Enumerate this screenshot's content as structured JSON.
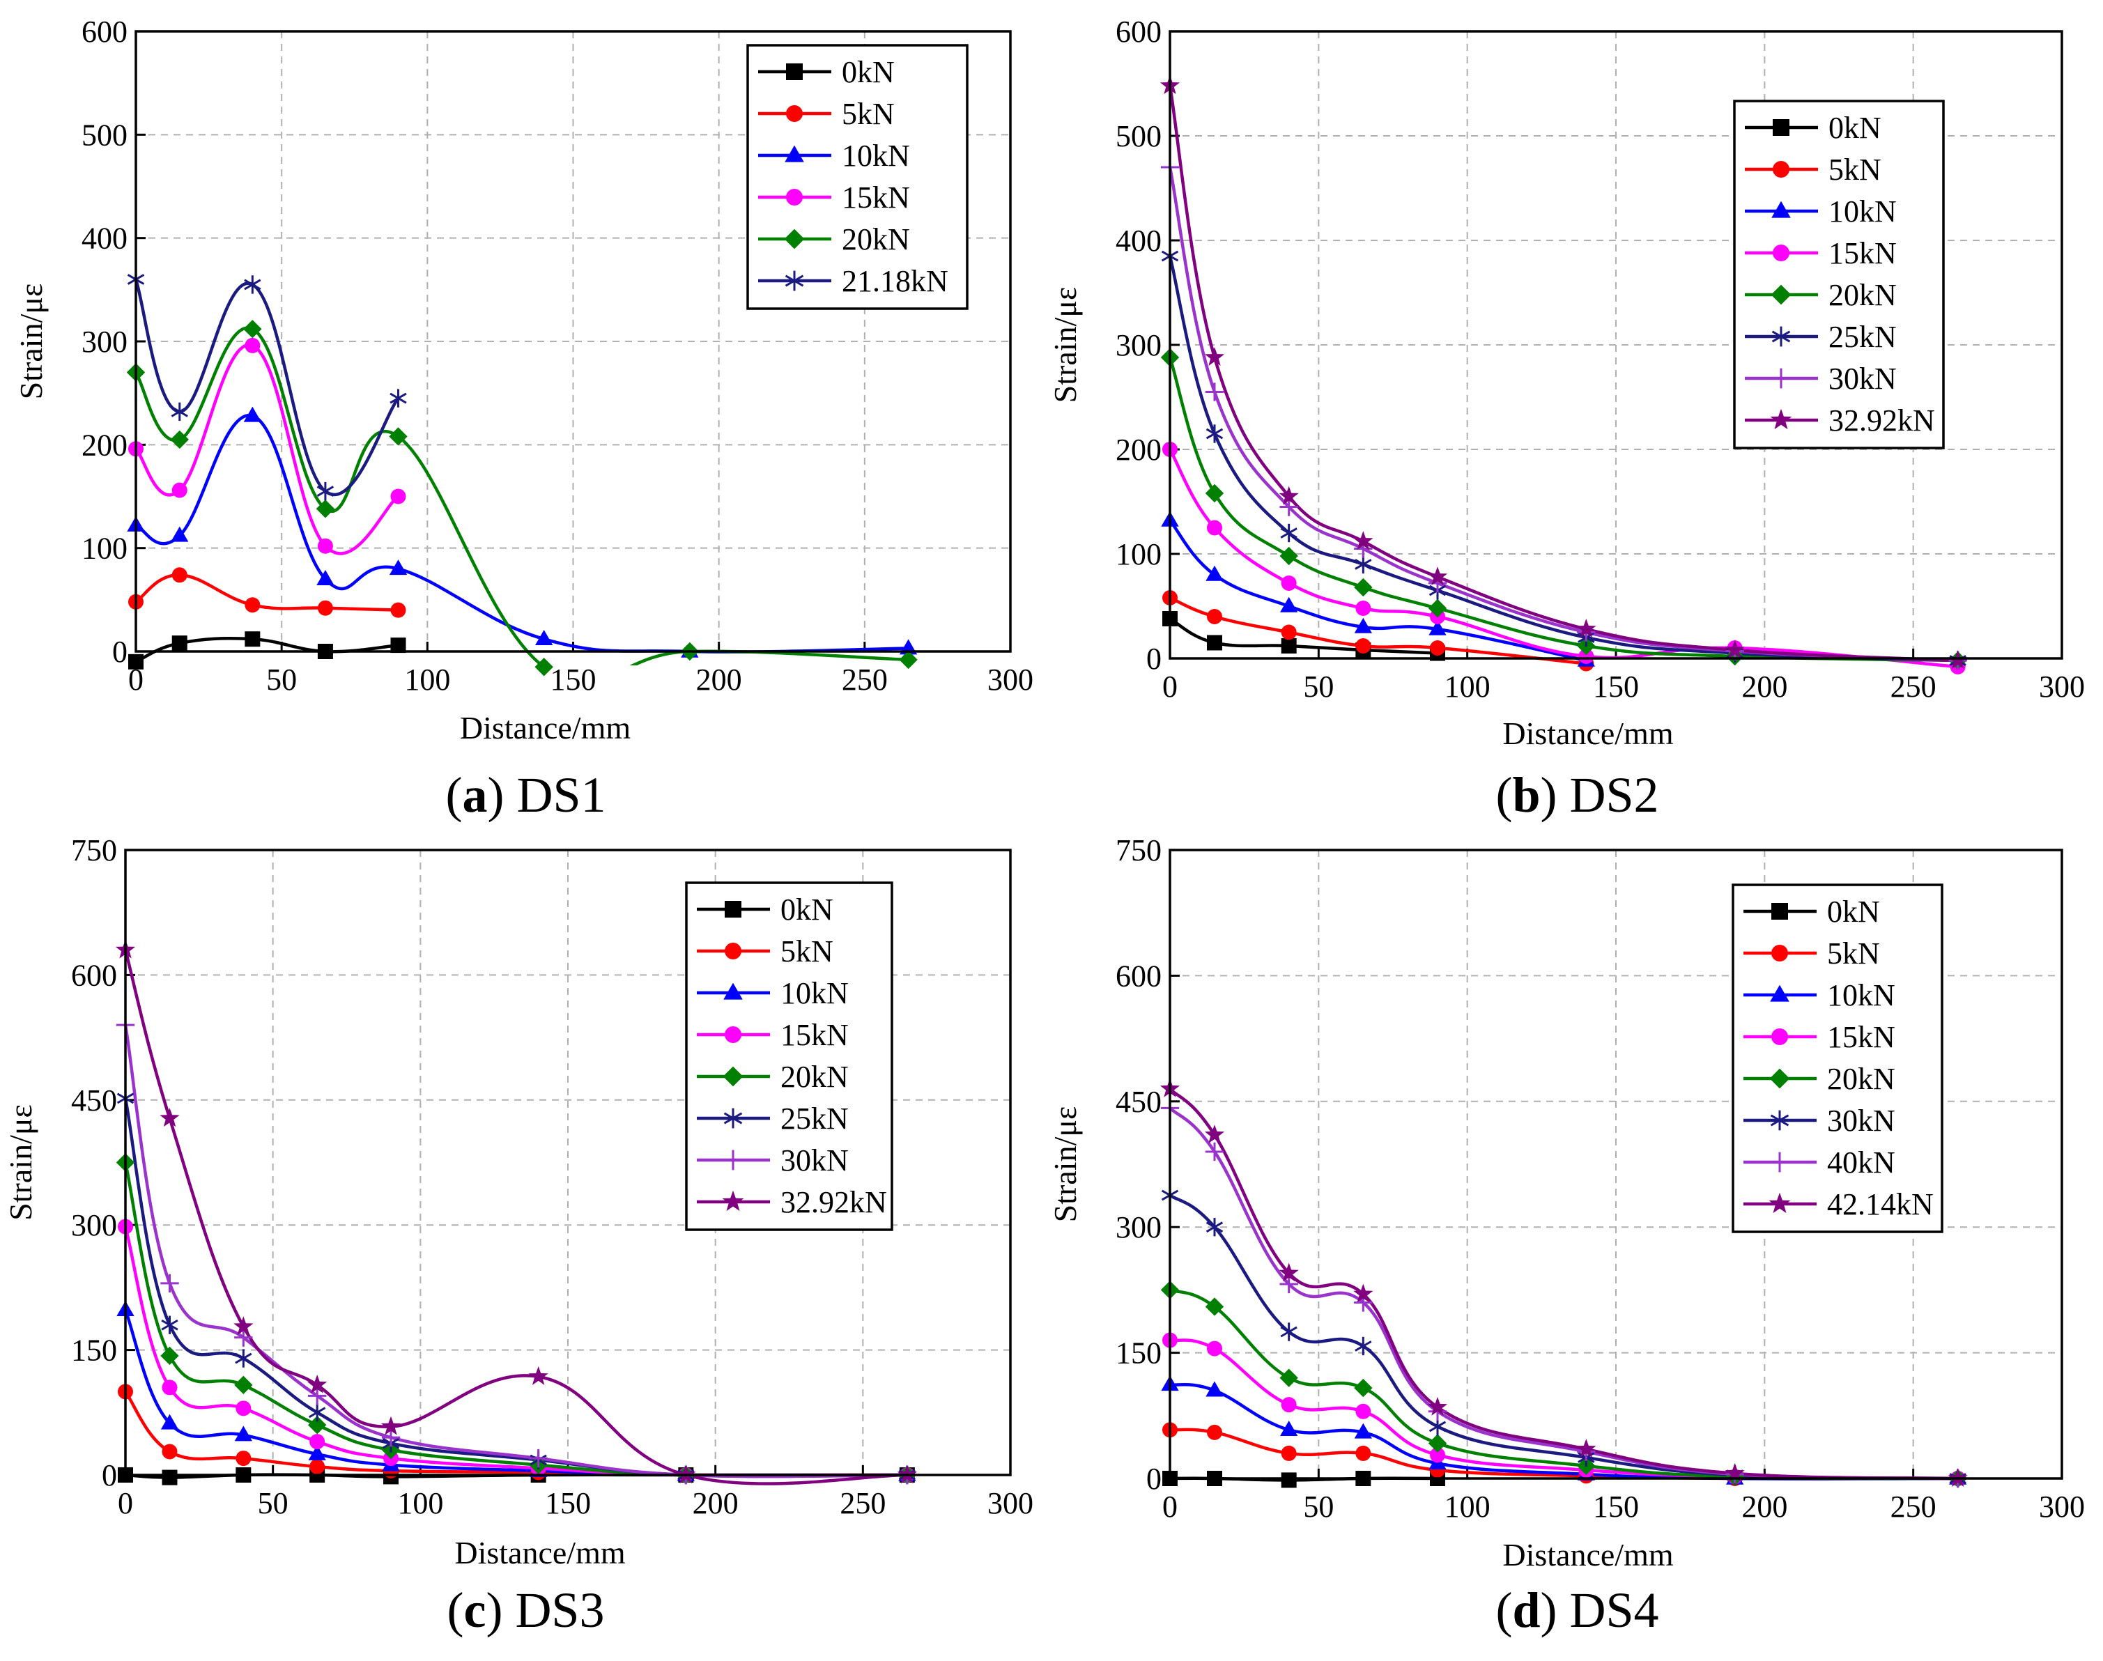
{
  "chart_data": [
    {
      "type": "line",
      "panel_letter": "a",
      "panel_name": "DS1",
      "xlabel": "Distance/mm",
      "ylabel": "Strain/με",
      "xlim": [
        0,
        300
      ],
      "ylim": [
        0,
        600
      ],
      "xticks": [
        0,
        50,
        100,
        150,
        200,
        250,
        300
      ],
      "yticks": [
        0,
        100,
        200,
        300,
        400,
        500,
        600
      ],
      "grid": true,
      "legend_position": "top-right",
      "x": [
        0,
        15,
        40,
        65,
        90,
        140,
        190,
        265
      ],
      "series": [
        {
          "name": "0kN",
          "color": "#000000",
          "marker": "square",
          "values": [
            -10,
            8,
            12,
            0,
            6,
            null,
            null,
            null
          ]
        },
        {
          "name": "5kN",
          "color": "#ff0000",
          "marker": "circle",
          "values": [
            48,
            74,
            45,
            42,
            40,
            null,
            null,
            null
          ]
        },
        {
          "name": "10kN",
          "color": "#0000ff",
          "marker": "triangle",
          "values": [
            122,
            112,
            228,
            70,
            80,
            12,
            0,
            3
          ]
        },
        {
          "name": "15kN",
          "color": "#ff00ff",
          "marker": "circle",
          "values": [
            196,
            156,
            296,
            102,
            150,
            null,
            null,
            null
          ]
        },
        {
          "name": "20kN",
          "color": "#008000",
          "marker": "diamond",
          "values": [
            270,
            205,
            312,
            138,
            208,
            -15,
            0,
            -8
          ]
        },
        {
          "name": "21.18kN",
          "color": "#1a1a80",
          "marker": "star6",
          "values": [
            360,
            232,
            355,
            155,
            245,
            null,
            null,
            null
          ]
        }
      ]
    },
    {
      "type": "line",
      "panel_letter": "b",
      "panel_name": "DS2",
      "xlabel": "Distance/mm",
      "ylabel": "Strain/με",
      "xlim": [
        0,
        300
      ],
      "ylim": [
        0,
        600
      ],
      "xticks": [
        0,
        50,
        100,
        150,
        200,
        250,
        300
      ],
      "yticks": [
        0,
        100,
        200,
        300,
        400,
        500,
        600
      ],
      "grid": true,
      "legend_position": "top-right",
      "x": [
        0,
        15,
        40,
        65,
        90,
        140,
        190,
        265
      ],
      "series": [
        {
          "name": "0kN",
          "color": "#000000",
          "marker": "square",
          "values": [
            38,
            15,
            12,
            8,
            5,
            null,
            null,
            null
          ]
        },
        {
          "name": "5kN",
          "color": "#ff0000",
          "marker": "circle",
          "values": [
            58,
            40,
            25,
            12,
            10,
            -5,
            null,
            null
          ]
        },
        {
          "name": "10kN",
          "color": "#0000ff",
          "marker": "triangle",
          "values": [
            132,
            80,
            50,
            30,
            28,
            -2,
            null,
            null
          ]
        },
        {
          "name": "15kN",
          "color": "#ff00ff",
          "marker": "circle",
          "values": [
            200,
            125,
            72,
            48,
            40,
            2,
            10,
            -8
          ]
        },
        {
          "name": "20kN",
          "color": "#008000",
          "marker": "diamond",
          "values": [
            288,
            158,
            98,
            68,
            48,
            12,
            2,
            -2
          ]
        },
        {
          "name": "25kN",
          "color": "#1a1a80",
          "marker": "star6",
          "values": [
            385,
            215,
            120,
            90,
            65,
            20,
            5,
            -2
          ]
        },
        {
          "name": "30kN",
          "color": "#9933cc",
          "marker": "plus",
          "values": [
            470,
            255,
            145,
            105,
            72,
            25,
            7,
            -2
          ]
        },
        {
          "name": "32.92kN",
          "color": "#800080",
          "marker": "star5",
          "values": [
            548,
            288,
            155,
            112,
            78,
            28,
            8,
            -2
          ]
        }
      ]
    },
    {
      "type": "line",
      "panel_letter": "c",
      "panel_name": "DS3",
      "xlabel": "Distance/mm",
      "ylabel": "Strain/με",
      "xlim": [
        0,
        300
      ],
      "ylim": [
        0,
        750
      ],
      "xticks": [
        0,
        50,
        100,
        150,
        200,
        250,
        300
      ],
      "yticks": [
        0,
        150,
        300,
        450,
        600,
        750
      ],
      "grid": true,
      "legend_position": "top-right",
      "x": [
        0,
        15,
        40,
        65,
        90,
        140,
        190,
        265
      ],
      "series": [
        {
          "name": "0kN",
          "color": "#000000",
          "marker": "square",
          "values": [
            0,
            -3,
            0,
            0,
            -2,
            0,
            0,
            0
          ]
        },
        {
          "name": "5kN",
          "color": "#ff0000",
          "marker": "circle",
          "values": [
            100,
            28,
            20,
            10,
            5,
            3,
            0,
            0
          ]
        },
        {
          "name": "10kN",
          "color": "#0000ff",
          "marker": "triangle",
          "values": [
            198,
            62,
            48,
            25,
            12,
            5,
            0,
            0
          ]
        },
        {
          "name": "15kN",
          "color": "#ff00ff",
          "marker": "circle",
          "values": [
            298,
            105,
            80,
            40,
            20,
            8,
            0,
            0
          ]
        },
        {
          "name": "20kN",
          "color": "#008000",
          "marker": "diamond",
          "values": [
            375,
            143,
            108,
            60,
            30,
            12,
            0,
            0
          ]
        },
        {
          "name": "25kN",
          "color": "#1a1a80",
          "marker": "star6",
          "values": [
            452,
            180,
            140,
            75,
            38,
            18,
            0,
            0
          ]
        },
        {
          "name": "30kN",
          "color": "#9933cc",
          "marker": "plus",
          "values": [
            540,
            230,
            165,
            95,
            45,
            20,
            0,
            0
          ]
        },
        {
          "name": "32.92kN",
          "color": "#800080",
          "marker": "star5",
          "values": [
            630,
            428,
            178,
            108,
            58,
            118,
            0,
            0
          ]
        }
      ]
    },
    {
      "type": "line",
      "panel_letter": "d",
      "panel_name": "DS4",
      "xlabel": "Distance/mm",
      "ylabel": "Strain/με",
      "xlim": [
        0,
        300
      ],
      "ylim": [
        0,
        750
      ],
      "xticks": [
        0,
        50,
        100,
        150,
        200,
        250,
        300
      ],
      "yticks": [
        0,
        150,
        300,
        450,
        600,
        750
      ],
      "grid": true,
      "legend_position": "top-right",
      "x": [
        0,
        15,
        40,
        65,
        90,
        140,
        190,
        265
      ],
      "series": [
        {
          "name": "0kN",
          "color": "#000000",
          "marker": "square",
          "values": [
            0,
            0,
            -2,
            0,
            0,
            null,
            null,
            null
          ]
        },
        {
          "name": "5kN",
          "color": "#ff0000",
          "marker": "circle",
          "values": [
            58,
            55,
            30,
            30,
            10,
            3,
            0,
            0
          ]
        },
        {
          "name": "10kN",
          "color": "#0000ff",
          "marker": "triangle",
          "values": [
            112,
            105,
            58,
            55,
            18,
            5,
            0,
            0
          ]
        },
        {
          "name": "15kN",
          "color": "#ff00ff",
          "marker": "circle",
          "values": [
            165,
            155,
            88,
            80,
            28,
            10,
            2,
            0
          ]
        },
        {
          "name": "20kN",
          "color": "#008000",
          "marker": "diamond",
          "values": [
            225,
            205,
            120,
            108,
            42,
            15,
            2,
            0
          ]
        },
        {
          "name": "30kN",
          "color": "#1a1a80",
          "marker": "star6",
          "values": [
            338,
            300,
            175,
            158,
            62,
            25,
            4,
            0
          ]
        },
        {
          "name": "40kN",
          "color": "#9933cc",
          "marker": "plus",
          "values": [
            442,
            390,
            232,
            210,
            80,
            32,
            5,
            0
          ]
        },
        {
          "name": "42.14kN",
          "color": "#800080",
          "marker": "star5",
          "values": [
            465,
            410,
            245,
            220,
            85,
            35,
            6,
            0
          ]
        }
      ]
    }
  ]
}
